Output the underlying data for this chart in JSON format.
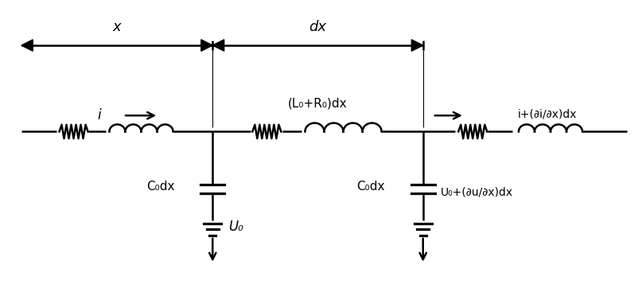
{
  "fig_width": 8.07,
  "fig_height": 3.67,
  "dpi": 100,
  "bg_color": "#ffffff",
  "line_color": "#000000",
  "line_width": 1.8,
  "text_color": "#000000",
  "labels": {
    "x_label": "x",
    "dx_label": "dx",
    "i_label": "i",
    "i_arrow_label": "i+(∂i/∂x)dx",
    "L0R0_label": "(L₀+R₀)dx",
    "C0dx_left_label": "C₀dx",
    "C0dx_right_label": "C₀dx",
    "U0_label": "U₀",
    "Uu_label": "U₀+(∂u/∂x)dx"
  }
}
